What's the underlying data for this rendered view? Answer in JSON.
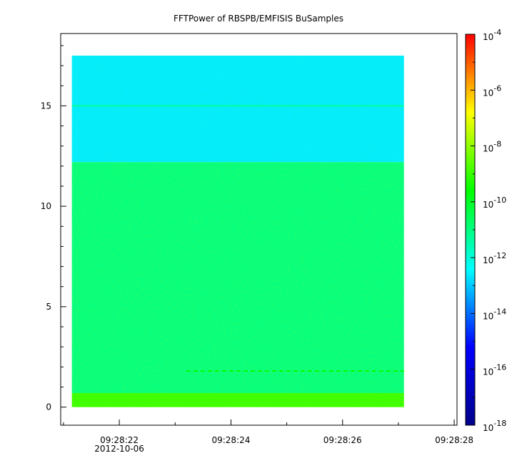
{
  "chart_data": {
    "type": "heatmap",
    "title": "FFTPower of RBSPB/EMFISIS  BuSamples",
    "xlabel": "",
    "ylabel": "",
    "x_ticks": [
      {
        "label": "09:28:22",
        "sublabel": "2012-10-06",
        "value": "2012-10-06 09:28:22"
      },
      {
        "label": "09:28:24",
        "value": "2012-10-06 09:28:24"
      },
      {
        "label": "09:28:26",
        "value": "2012-10-06 09:28:26"
      },
      {
        "label": "09:28:28",
        "value": "2012-10-06 09:28:28"
      }
    ],
    "x_range": [
      "2012-10-06 09:28:20.95",
      "2012-10-06 09:28:28.05"
    ],
    "data_x_range": [
      "2012-10-06 09:28:21.15",
      "2012-10-06 09:28:27.10"
    ],
    "y_ticks": [
      {
        "label": "0",
        "value": 0
      },
      {
        "label": "5",
        "value": 5
      },
      {
        "label": "10",
        "value": 10
      },
      {
        "label": "15",
        "value": 15
      }
    ],
    "ylim": [
      -0.9,
      18.6
    ],
    "data_y_range": [
      0,
      17.5
    ],
    "colorbar": {
      "scale": "log",
      "zlim": [
        1e-18,
        0.0001
      ],
      "colors": [
        "#00008b",
        "#0000ff",
        "#00ffff",
        "#00ff00",
        "#ffff00",
        "#ff0000"
      ],
      "ticks": [
        {
          "base": "10",
          "exp": "-4",
          "value": 0.0001
        },
        {
          "base": "10",
          "exp": "-6",
          "value": 1e-06
        },
        {
          "base": "10",
          "exp": "-8",
          "value": 1e-08
        },
        {
          "base": "10",
          "exp": "-10",
          "value": 1e-10
        },
        {
          "base": "10",
          "exp": "-12",
          "value": 1e-12
        },
        {
          "base": "10",
          "exp": "-14",
          "value": 1e-14
        },
        {
          "base": "10",
          "exp": "-16",
          "value": 1e-16
        },
        {
          "base": "10",
          "exp": "-18",
          "value": 1e-18
        }
      ]
    },
    "regions": [
      {
        "y_range": [
          12.2,
          17.5
        ],
        "log10_power": -12.6,
        "description": "cyan-green upper band"
      },
      {
        "y_range": [
          0.7,
          12.2
        ],
        "log10_power": -11.0,
        "description": "green to yellow-green main band"
      },
      {
        "y_range": [
          0,
          0.7
        ],
        "log10_power": -9.0,
        "description": "yellow low-frequency band"
      }
    ],
    "features": [
      {
        "y": 15.0,
        "log10_power": -11.3,
        "type": "horizontal line"
      },
      {
        "y": 1.8,
        "log10_power": -9.5,
        "type": "dashed horizontal line",
        "x_start": "2012-10-06 09:28:23.2"
      }
    ]
  }
}
